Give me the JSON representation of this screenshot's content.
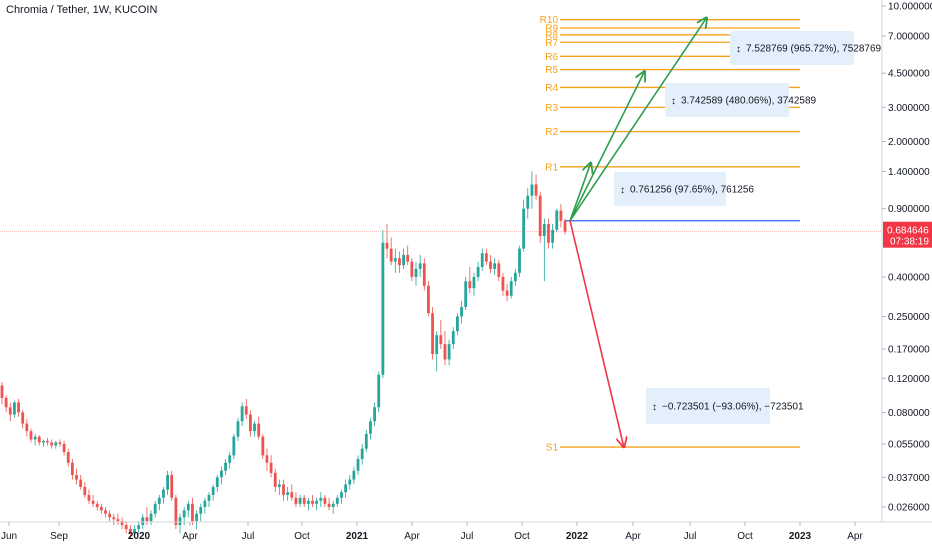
{
  "title": "Chromia / Tether, 1W, KUCOIN",
  "chart_data": {
    "type": "candlestick",
    "symbol": "CHR/USDT",
    "interval": "1W",
    "exchange": "KUCOIN",
    "y_scale": "log",
    "ylim": [
      0.018,
      10.5
    ],
    "y_ticks": [
      "10.000000",
      "7.000000",
      "4.500000",
      "3.000000",
      "2.000000",
      "1.400000",
      "0.900000",
      "0.400000",
      "0.250000",
      "0.170000",
      "0.120000",
      "0.080000",
      "0.055000",
      "0.037000",
      "0.026000"
    ],
    "x_ticks": [
      {
        "label": "Jun",
        "bold": false
      },
      {
        "label": "Sep",
        "bold": false
      },
      {
        "label": "2020",
        "bold": true
      },
      {
        "label": "Apr",
        "bold": false
      },
      {
        "label": "Jul",
        "bold": false
      },
      {
        "label": "Oct",
        "bold": false
      },
      {
        "label": "2021",
        "bold": true
      },
      {
        "label": "Apr",
        "bold": false
      },
      {
        "label": "Jul",
        "bold": false
      },
      {
        "label": "Oct",
        "bold": false
      },
      {
        "label": "2022",
        "bold": true
      },
      {
        "label": "Apr",
        "bold": false
      },
      {
        "label": "Jul",
        "bold": false
      },
      {
        "label": "Oct",
        "bold": false
      },
      {
        "label": "2023",
        "bold": true
      },
      {
        "label": "Apr",
        "bold": false
      }
    ],
    "current_price": "0.684646",
    "countdown": "07:38:19",
    "entry_price": 0.78,
    "resistance_levels": [
      {
        "name": "R1",
        "value": 1.48
      },
      {
        "name": "R2",
        "value": 2.25
      },
      {
        "name": "R3",
        "value": 3.0
      },
      {
        "name": "R4",
        "value": 3.8
      },
      {
        "name": "R5",
        "value": 4.7
      },
      {
        "name": "R6",
        "value": 5.5
      },
      {
        "name": "R7",
        "value": 6.5
      },
      {
        "name": "R8",
        "value": 7.1
      },
      {
        "name": "R9",
        "value": 7.7
      },
      {
        "name": "R10",
        "value": 8.5
      }
    ],
    "support_levels": [
      {
        "name": "S1",
        "value": 0.053
      }
    ],
    "annotations": [
      {
        "text": "0.761256 (97.65%), 761256",
        "price": 1.2
      },
      {
        "text": "3.742589 (480.06%), 3742589",
        "price": 3.35
      },
      {
        "text": "7.528769 (965.72%), 7528769",
        "price": 6.6
      },
      {
        "text": "−0.723501 (−93.06%), −723501",
        "price": 0.078
      }
    ],
    "projections": [
      {
        "color": "#2e9e4f",
        "points": [
          [
            0.78,
            0
          ],
          [
            1.55,
            5
          ]
        ]
      },
      {
        "color": "#2e9e4f",
        "points": [
          [
            0.78,
            0
          ],
          [
            4.6,
            18
          ]
        ]
      },
      {
        "color": "#2e9e4f",
        "points": [
          [
            0.78,
            0
          ],
          [
            8.7,
            33
          ]
        ]
      },
      {
        "color": "#f23645",
        "points": [
          [
            0.78,
            0
          ],
          [
            0.053,
            13
          ]
        ]
      }
    ],
    "candles_ohlc": [
      [
        0.11,
        0.115,
        0.088,
        0.095
      ],
      [
        0.095,
        0.098,
        0.08,
        0.085
      ],
      [
        0.085,
        0.09,
        0.072,
        0.078
      ],
      [
        0.078,
        0.092,
        0.075,
        0.09
      ],
      [
        0.09,
        0.094,
        0.076,
        0.08
      ],
      [
        0.08,
        0.082,
        0.066,
        0.07
      ],
      [
        0.07,
        0.074,
        0.06,
        0.064
      ],
      [
        0.064,
        0.066,
        0.056,
        0.058
      ],
      [
        0.058,
        0.062,
        0.054,
        0.06
      ],
      [
        0.06,
        0.061,
        0.054,
        0.056
      ],
      [
        0.056,
        0.058,
        0.053,
        0.057
      ],
      [
        0.057,
        0.059,
        0.054,
        0.056
      ],
      [
        0.056,
        0.058,
        0.052,
        0.054
      ],
      [
        0.054,
        0.057,
        0.052,
        0.056
      ],
      [
        0.056,
        0.058,
        0.053,
        0.055
      ],
      [
        0.055,
        0.057,
        0.048,
        0.05
      ],
      [
        0.05,
        0.052,
        0.042,
        0.044
      ],
      [
        0.044,
        0.046,
        0.036,
        0.038
      ],
      [
        0.038,
        0.041,
        0.034,
        0.036
      ],
      [
        0.036,
        0.038,
        0.032,
        0.033
      ],
      [
        0.033,
        0.035,
        0.029,
        0.03
      ],
      [
        0.03,
        0.032,
        0.027,
        0.028
      ],
      [
        0.028,
        0.03,
        0.026,
        0.027
      ],
      [
        0.027,
        0.028,
        0.025,
        0.026
      ],
      [
        0.026,
        0.027,
        0.024,
        0.025
      ],
      [
        0.025,
        0.026,
        0.023,
        0.024
      ],
      [
        0.024,
        0.025,
        0.022,
        0.023
      ],
      [
        0.023,
        0.024,
        0.021,
        0.0225
      ],
      [
        0.0225,
        0.024,
        0.021,
        0.022
      ],
      [
        0.022,
        0.023,
        0.02,
        0.021
      ],
      [
        0.021,
        0.022,
        0.019,
        0.02
      ],
      [
        0.02,
        0.021,
        0.018,
        0.019
      ],
      [
        0.019,
        0.021,
        0.018,
        0.02
      ],
      [
        0.02,
        0.022,
        0.019,
        0.021
      ],
      [
        0.021,
        0.024,
        0.02,
        0.023
      ],
      [
        0.023,
        0.026,
        0.021,
        0.022
      ],
      [
        0.022,
        0.025,
        0.021,
        0.024
      ],
      [
        0.024,
        0.028,
        0.023,
        0.027
      ],
      [
        0.027,
        0.03,
        0.025,
        0.029
      ],
      [
        0.029,
        0.033,
        0.027,
        0.032
      ],
      [
        0.032,
        0.04,
        0.03,
        0.038
      ],
      [
        0.038,
        0.04,
        0.028,
        0.029
      ],
      [
        0.029,
        0.03,
        0.02,
        0.021
      ],
      [
        0.021,
        0.024,
        0.019,
        0.023
      ],
      [
        0.023,
        0.026,
        0.021,
        0.025
      ],
      [
        0.025,
        0.028,
        0.023,
        0.027
      ],
      [
        0.027,
        0.029,
        0.021,
        0.022
      ],
      [
        0.022,
        0.025,
        0.02,
        0.024
      ],
      [
        0.024,
        0.027,
        0.022,
        0.026
      ],
      [
        0.026,
        0.029,
        0.024,
        0.028
      ],
      [
        0.028,
        0.031,
        0.026,
        0.03
      ],
      [
        0.03,
        0.034,
        0.028,
        0.033
      ],
      [
        0.033,
        0.038,
        0.031,
        0.037
      ],
      [
        0.037,
        0.042,
        0.034,
        0.04
      ],
      [
        0.04,
        0.046,
        0.038,
        0.044
      ],
      [
        0.044,
        0.05,
        0.041,
        0.048
      ],
      [
        0.048,
        0.062,
        0.046,
        0.06
      ],
      [
        0.06,
        0.075,
        0.057,
        0.072
      ],
      [
        0.072,
        0.09,
        0.068,
        0.086
      ],
      [
        0.086,
        0.094,
        0.074,
        0.078
      ],
      [
        0.078,
        0.082,
        0.06,
        0.064
      ],
      [
        0.064,
        0.072,
        0.06,
        0.07
      ],
      [
        0.07,
        0.076,
        0.058,
        0.06
      ],
      [
        0.06,
        0.062,
        0.046,
        0.048
      ],
      [
        0.048,
        0.052,
        0.04,
        0.044
      ],
      [
        0.044,
        0.048,
        0.037,
        0.039
      ],
      [
        0.039,
        0.041,
        0.031,
        0.033
      ],
      [
        0.033,
        0.036,
        0.03,
        0.034
      ],
      [
        0.034,
        0.036,
        0.028,
        0.03
      ],
      [
        0.03,
        0.033,
        0.028,
        0.031
      ],
      [
        0.031,
        0.034,
        0.028,
        0.029
      ],
      [
        0.029,
        0.031,
        0.026,
        0.027
      ],
      [
        0.027,
        0.03,
        0.026,
        0.029
      ],
      [
        0.029,
        0.03,
        0.026,
        0.027
      ],
      [
        0.027,
        0.029,
        0.025,
        0.028
      ],
      [
        0.028,
        0.03,
        0.026,
        0.027
      ],
      [
        0.027,
        0.029,
        0.025,
        0.028
      ],
      [
        0.028,
        0.031,
        0.026,
        0.029
      ],
      [
        0.029,
        0.03,
        0.026,
        0.027
      ],
      [
        0.027,
        0.029,
        0.025,
        0.026
      ],
      [
        0.026,
        0.028,
        0.024,
        0.027
      ],
      [
        0.027,
        0.03,
        0.026,
        0.029
      ],
      [
        0.029,
        0.032,
        0.027,
        0.031
      ],
      [
        0.031,
        0.036,
        0.029,
        0.034
      ],
      [
        0.034,
        0.038,
        0.032,
        0.036
      ],
      [
        0.036,
        0.042,
        0.034,
        0.04
      ],
      [
        0.04,
        0.048,
        0.038,
        0.046
      ],
      [
        0.046,
        0.055,
        0.043,
        0.052
      ],
      [
        0.052,
        0.065,
        0.05,
        0.062
      ],
      [
        0.062,
        0.075,
        0.058,
        0.072
      ],
      [
        0.072,
        0.09,
        0.068,
        0.085
      ],
      [
        0.085,
        0.13,
        0.08,
        0.125
      ],
      [
        0.125,
        0.7,
        0.12,
        0.6
      ],
      [
        0.6,
        0.75,
        0.5,
        0.56
      ],
      [
        0.56,
        0.64,
        0.46,
        0.48
      ],
      [
        0.48,
        0.56,
        0.42,
        0.5
      ],
      [
        0.5,
        0.54,
        0.42,
        0.46
      ],
      [
        0.46,
        0.56,
        0.44,
        0.52
      ],
      [
        0.52,
        0.58,
        0.46,
        0.48
      ],
      [
        0.48,
        0.5,
        0.38,
        0.4
      ],
      [
        0.4,
        0.48,
        0.36,
        0.44
      ],
      [
        0.44,
        0.52,
        0.4,
        0.47
      ],
      [
        0.47,
        0.5,
        0.34,
        0.36
      ],
      [
        0.36,
        0.38,
        0.25,
        0.26
      ],
      [
        0.26,
        0.28,
        0.15,
        0.16
      ],
      [
        0.16,
        0.21,
        0.13,
        0.2
      ],
      [
        0.2,
        0.24,
        0.17,
        0.18
      ],
      [
        0.18,
        0.21,
        0.14,
        0.15
      ],
      [
        0.15,
        0.19,
        0.14,
        0.18
      ],
      [
        0.18,
        0.22,
        0.17,
        0.21
      ],
      [
        0.21,
        0.26,
        0.2,
        0.25
      ],
      [
        0.25,
        0.3,
        0.23,
        0.28
      ],
      [
        0.28,
        0.4,
        0.27,
        0.38
      ],
      [
        0.38,
        0.45,
        0.33,
        0.35
      ],
      [
        0.35,
        0.42,
        0.32,
        0.4
      ],
      [
        0.4,
        0.48,
        0.38,
        0.45
      ],
      [
        0.45,
        0.56,
        0.43,
        0.53
      ],
      [
        0.53,
        0.56,
        0.46,
        0.48
      ],
      [
        0.48,
        0.52,
        0.42,
        0.44
      ],
      [
        0.44,
        0.5,
        0.41,
        0.47
      ],
      [
        0.47,
        0.49,
        0.38,
        0.4
      ],
      [
        0.4,
        0.42,
        0.32,
        0.34
      ],
      [
        0.34,
        0.37,
        0.3,
        0.32
      ],
      [
        0.32,
        0.4,
        0.31,
        0.38
      ],
      [
        0.38,
        0.44,
        0.36,
        0.42
      ],
      [
        0.42,
        0.58,
        0.4,
        0.56
      ],
      [
        0.56,
        1.0,
        0.54,
        0.9
      ],
      [
        0.9,
        1.15,
        0.8,
        1.05
      ],
      [
        1.05,
        1.4,
        0.9,
        1.2
      ],
      [
        1.2,
        1.35,
        1.0,
        1.05
      ],
      [
        1.05,
        1.1,
        0.6,
        0.65
      ],
      [
        0.65,
        0.8,
        0.38,
        0.75
      ],
      [
        0.75,
        0.8,
        0.56,
        0.6
      ],
      [
        0.6,
        0.75,
        0.56,
        0.7
      ],
      [
        0.7,
        0.9,
        0.68,
        0.88
      ],
      [
        0.88,
        0.95,
        0.72,
        0.78
      ],
      [
        0.78,
        0.8,
        0.66,
        0.685
      ]
    ]
  }
}
